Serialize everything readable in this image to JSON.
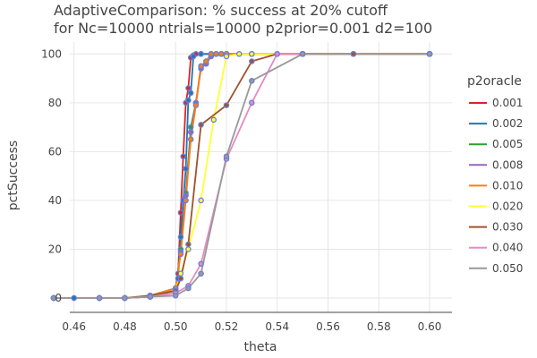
{
  "chart_data": {
    "type": "line",
    "title": "AdaptiveComparison: % success at 20% cutoff",
    "subtitle": "for Nc=10000 ntrials=10000 p2prior=0.001 d2=100",
    "xlabel": "theta",
    "ylabel": "pctSuccess",
    "xlim": [
      0.45,
      0.6
    ],
    "ylim": [
      0,
      100
    ],
    "x_ticks": [
      "0.46",
      "0.48",
      "0.50",
      "0.52",
      "0.54",
      "0.56",
      "0.58",
      "0.60"
    ],
    "y_ticks": [
      "0",
      "20",
      "40",
      "60",
      "80",
      "100"
    ],
    "grid": true,
    "legend_title": "p2oracle",
    "legend_position": "right",
    "marker_color": "#6a7fd6",
    "series": [
      {
        "name": "0.001",
        "color": "#d62728",
        "x": [
          0.452,
          0.46,
          0.47,
          0.48,
          0.49,
          0.5,
          0.501,
          0.502,
          0.503,
          0.504,
          0.505,
          0.506,
          0.507,
          0.508,
          0.51,
          0.52,
          0.53,
          0.55,
          0.57,
          0.6
        ],
        "y": [
          0,
          0,
          0,
          0,
          0.5,
          3,
          10,
          35,
          58,
          80,
          86,
          98.5,
          99.5,
          100,
          100,
          100,
          100,
          100,
          100,
          100
        ]
      },
      {
        "name": "0.002",
        "color": "#1f77b4",
        "x": [
          0.452,
          0.46,
          0.47,
          0.48,
          0.49,
          0.5,
          0.501,
          0.502,
          0.503,
          0.504,
          0.505,
          0.506,
          0.507,
          0.51,
          0.52,
          0.55,
          0.6
        ],
        "y": [
          0,
          0,
          0,
          0,
          0.5,
          3,
          8,
          25,
          40,
          53,
          81,
          84,
          99,
          100,
          100,
          100,
          100
        ]
      },
      {
        "name": "0.005",
        "color": "#2ca02c",
        "x": [
          0.452,
          0.47,
          0.48,
          0.49,
          0.5,
          0.502,
          0.504,
          0.506,
          0.508,
          0.51,
          0.512,
          0.514,
          0.516,
          0.518,
          0.52,
          0.55,
          0.6
        ],
        "y": [
          0,
          0,
          0,
          1,
          4,
          20,
          43,
          70,
          80,
          95,
          96,
          100,
          100,
          100,
          100,
          100,
          100
        ]
      },
      {
        "name": "0.008",
        "color": "#9467bd",
        "x": [
          0.452,
          0.47,
          0.48,
          0.49,
          0.5,
          0.502,
          0.504,
          0.506,
          0.508,
          0.51,
          0.512,
          0.514,
          0.516,
          0.518,
          0.52,
          0.55,
          0.6
        ],
        "y": [
          0,
          0,
          0,
          1,
          4,
          19,
          42,
          68,
          80,
          94,
          96,
          99,
          100,
          100,
          100,
          100,
          100
        ]
      },
      {
        "name": "0.010",
        "color": "#ff7f0e",
        "x": [
          0.452,
          0.47,
          0.48,
          0.49,
          0.5,
          0.502,
          0.504,
          0.506,
          0.508,
          0.51,
          0.512,
          0.514,
          0.516,
          0.518,
          0.52,
          0.53,
          0.55,
          0.57,
          0.6
        ],
        "y": [
          0,
          0,
          0,
          1,
          4,
          18,
          40,
          65,
          79,
          95,
          97,
          100,
          100,
          100,
          100,
          100,
          100,
          100,
          100
        ]
      },
      {
        "name": "0.020",
        "color": "#ffff33",
        "x": [
          0.452,
          0.47,
          0.48,
          0.49,
          0.5,
          0.502,
          0.505,
          0.51,
          0.515,
          0.52,
          0.525,
          0.53,
          0.55,
          0.6
        ],
        "y": [
          0,
          0,
          0,
          1,
          3,
          10,
          20,
          40,
          73,
          99,
          100,
          100,
          100,
          100
        ]
      },
      {
        "name": "0.030",
        "color": "#a0522d",
        "x": [
          0.452,
          0.47,
          0.48,
          0.49,
          0.5,
          0.502,
          0.505,
          0.51,
          0.52,
          0.53,
          0.54,
          0.55,
          0.57,
          0.6
        ],
        "y": [
          0,
          0,
          0,
          1,
          3,
          8,
          22,
          71,
          79,
          97,
          100,
          100,
          100,
          100
        ]
      },
      {
        "name": "0.040",
        "color": "#e78ac3",
        "x": [
          0.452,
          0.47,
          0.48,
          0.49,
          0.5,
          0.505,
          0.51,
          0.52,
          0.53,
          0.54,
          0.55,
          0.6
        ],
        "y": [
          0,
          0,
          0,
          0.5,
          2,
          5,
          14,
          57,
          80,
          100,
          100,
          100
        ]
      },
      {
        "name": "0.050",
        "color": "#999999",
        "x": [
          0.452,
          0.47,
          0.48,
          0.49,
          0.5,
          0.505,
          0.51,
          0.52,
          0.53,
          0.55,
          0.6
        ],
        "y": [
          0,
          0,
          0,
          0.5,
          1,
          4,
          10,
          58,
          89,
          100,
          100
        ]
      }
    ]
  }
}
